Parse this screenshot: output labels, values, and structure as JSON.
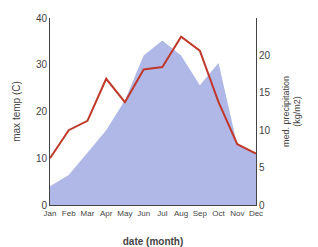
{
  "chart_data": {
    "type": "line",
    "categories": [
      "Jan",
      "Feb",
      "Mar",
      "Apr",
      "May",
      "Jun",
      "Jul",
      "Aug",
      "Sep",
      "Oct",
      "Nov",
      "Dec"
    ],
    "series": [
      {
        "type": "area",
        "axis": "y2",
        "color": "#b0b8e8",
        "values": [
          2.5,
          4.0,
          7.0,
          10.0,
          14.0,
          20.0,
          22.0,
          20.0,
          16.0,
          19.0,
          8.0,
          7.0
        ]
      },
      {
        "type": "line",
        "color": "#c0392b",
        "values": [
          10.0,
          16.0,
          18.0,
          27.0,
          22.0,
          29.0,
          29.5,
          36.0,
          33.0,
          22.0,
          13.0,
          11.0
        ]
      }
    ],
    "xlabel": "date (month)",
    "ylabel": "max temp (C)",
    "y2label": "med. precipitation\n(kg/m2)",
    "ylim": [
      0,
      40
    ],
    "yticks": [
      0,
      10,
      20,
      30,
      40
    ],
    "y2lim": [
      0,
      25
    ],
    "y2ticks": [
      0,
      5,
      10,
      15,
      20
    ],
    "grid": false
  }
}
